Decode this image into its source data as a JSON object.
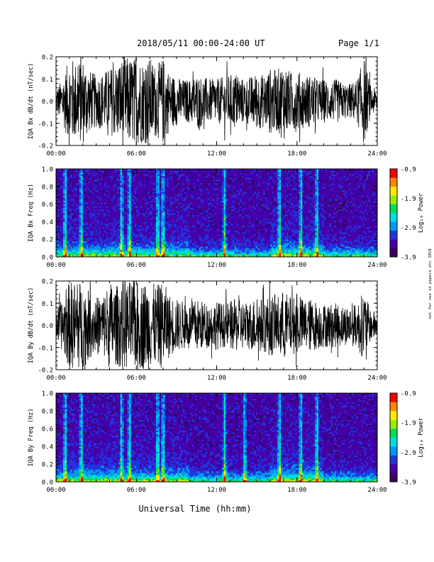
{
  "header": {
    "title": "2018/05/11  00:00-24:00 UT",
    "page": "Page 1/1"
  },
  "side_note": "not for use in papers etc 2018",
  "colors": {
    "waveform": "#000000",
    "colormap": [
      "#3a0060",
      "#4400aa",
      "#2233dd",
      "#0099ee",
      "#00dddd",
      "#00dd55",
      "#99ee00",
      "#ffee00",
      "#ff8800",
      "#ff0000"
    ]
  },
  "chart_data": [
    {
      "type": "line",
      "ylabel": "IQA Bx dB/dt (nT/sec)",
      "ylim": [
        -0.2,
        0.2
      ],
      "yticks": [
        "-0.2",
        "-0.1",
        "0.0",
        "0.1",
        "0.2"
      ],
      "xlim": [
        "00:00",
        "24:00"
      ],
      "xticks": [
        "00:00",
        "06:00",
        "12:00",
        "18:00",
        "24:00"
      ],
      "envelope": {
        "x_hours": [
          0,
          0.5,
          1,
          1.5,
          2,
          2.5,
          3,
          3.5,
          4,
          4.5,
          5,
          5.5,
          6,
          6.5,
          7,
          7.5,
          8,
          8.5,
          9,
          9.5,
          10,
          10.5,
          11,
          11.5,
          12,
          12.5,
          13,
          13.5,
          14,
          14.5,
          15,
          15.5,
          16,
          16.5,
          17,
          17.5,
          18,
          18.5,
          19,
          19.5,
          20,
          20.5,
          21,
          21.5,
          22,
          22.5,
          23,
          23.5,
          24
        ],
        "amplitude": [
          0.06,
          0.1,
          0.2,
          0.18,
          0.2,
          0.14,
          0.12,
          0.13,
          0.15,
          0.17,
          0.2,
          0.2,
          0.2,
          0.19,
          0.2,
          0.16,
          0.2,
          0.13,
          0.11,
          0.1,
          0.1,
          0.12,
          0.11,
          0.1,
          0.1,
          0.11,
          0.12,
          0.13,
          0.1,
          0.11,
          0.13,
          0.12,
          0.15,
          0.14,
          0.18,
          0.13,
          0.14,
          0.12,
          0.12,
          0.1,
          0.1,
          0.09,
          0.1,
          0.08,
          0.08,
          0.1,
          0.2,
          0.07,
          0.05
        ]
      }
    },
    {
      "type": "heatmap",
      "ylabel": "IQA Bx Freq (Hz)",
      "ylim": [
        0.0,
        1.0
      ],
      "yticks": [
        "0.0",
        "0.2",
        "0.4",
        "0.6",
        "0.8",
        "1.0"
      ],
      "xlim": [
        "00:00",
        "24:00"
      ],
      "xticks": [
        "00:00",
        "06:00",
        "12:00",
        "18:00",
        "24:00"
      ],
      "colorbar": {
        "label": "Log₁₀ Power",
        "range": [
          -3.9,
          -0.9
        ],
        "ticks": [
          "-0.9",
          "-1.9",
          "-2.9",
          "-3.9"
        ]
      },
      "bursts_hours": [
        0.7,
        1.9,
        4.9,
        5.5,
        7.6,
        8.0,
        12.6,
        16.7,
        18.3,
        19.5
      ],
      "broad_enhancement_hours": [
        16,
        20
      ]
    },
    {
      "type": "line",
      "ylabel": "IQA By dB/dt (nT/sec)",
      "ylim": [
        -0.2,
        0.2
      ],
      "yticks": [
        "-0.2",
        "-0.1",
        "0.0",
        "0.1",
        "0.2"
      ],
      "xlim": [
        "00:00",
        "24:00"
      ],
      "xticks": [
        "00:00",
        "06:00",
        "12:00",
        "18:00",
        "24:00"
      ],
      "envelope": {
        "x_hours": [
          0,
          0.5,
          1,
          1.5,
          2,
          2.5,
          3,
          3.5,
          4,
          4.5,
          5,
          5.5,
          6,
          6.5,
          7,
          7.5,
          8,
          8.5,
          9,
          9.5,
          10,
          10.5,
          11,
          11.5,
          12,
          12.5,
          13,
          13.5,
          14,
          14.5,
          15,
          15.5,
          16,
          16.5,
          17,
          17.5,
          18,
          18.5,
          19,
          19.5,
          20,
          20.5,
          21,
          21.5,
          22,
          22.5,
          23,
          23.5,
          24
        ],
        "amplitude": [
          0.07,
          0.12,
          0.2,
          0.2,
          0.2,
          0.15,
          0.13,
          0.14,
          0.2,
          0.18,
          0.2,
          0.2,
          0.2,
          0.2,
          0.2,
          0.18,
          0.2,
          0.14,
          0.12,
          0.11,
          0.1,
          0.12,
          0.11,
          0.1,
          0.11,
          0.1,
          0.11,
          0.12,
          0.11,
          0.11,
          0.13,
          0.12,
          0.14,
          0.13,
          0.16,
          0.13,
          0.13,
          0.12,
          0.12,
          0.11,
          0.1,
          0.1,
          0.1,
          0.09,
          0.09,
          0.1,
          0.16,
          0.07,
          0.06
        ]
      }
    },
    {
      "type": "heatmap",
      "ylabel": "IQA By Freq (Hz)",
      "ylim": [
        0.0,
        1.0
      ],
      "yticks": [
        "0.0",
        "0.2",
        "0.4",
        "0.6",
        "0.8",
        "1.0"
      ],
      "xlim": [
        "00:00",
        "24:00"
      ],
      "xticks": [
        "00:00",
        "06:00",
        "12:00",
        "18:00",
        "24:00"
      ],
      "colorbar": {
        "label": "Log₁₀ Power",
        "range": [
          -3.9,
          -0.9
        ],
        "ticks": [
          "-0.9",
          "-1.9",
          "-2.9",
          "-3.9"
        ]
      },
      "bursts_hours": [
        0.7,
        1.9,
        4.9,
        5.5,
        7.6,
        8.0,
        12.6,
        14.1,
        16.7,
        18.3,
        19.5
      ],
      "broad_enhancement_hours": [
        16,
        20
      ]
    }
  ],
  "xlabel": "Universal Time (hh:mm)"
}
